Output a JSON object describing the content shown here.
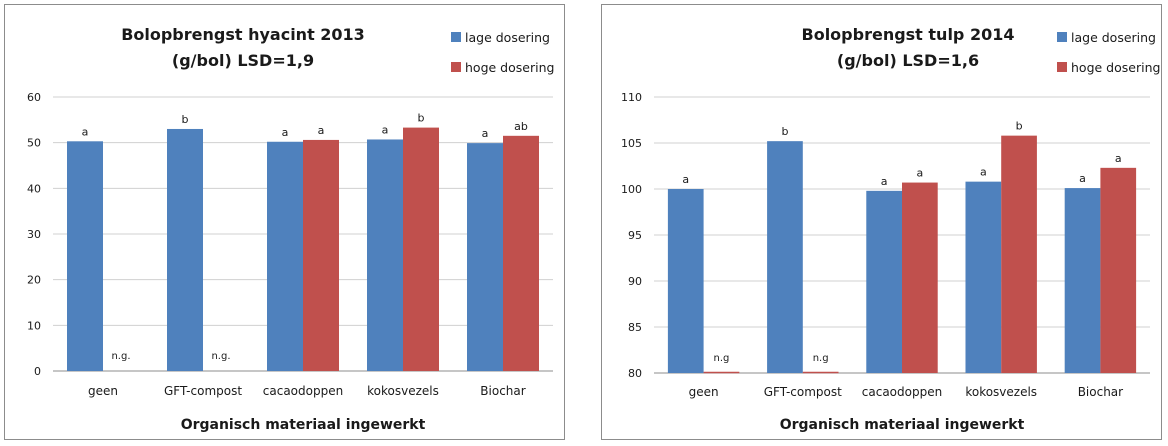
{
  "chart_data": [
    {
      "type": "bar",
      "title": [
        "Bolopbrengst hyacint 2013",
        "(g/bol) LSD=1,9"
      ],
      "xlabel": "Organisch materiaal ingewerkt",
      "ylabel": "",
      "ylim": [
        0,
        60
      ],
      "yticks": [
        0,
        10,
        20,
        30,
        40,
        50,
        60
      ],
      "grid": true,
      "legend_position": "top-right",
      "categories": [
        "geen",
        "GFT-compost",
        "cacaodoppen",
        "kokosvezels",
        "Biochar"
      ],
      "series": [
        {
          "name": "lage dosering",
          "color": "#4f81bd",
          "values": [
            50.3,
            53.0,
            50.2,
            50.7,
            49.9
          ],
          "labels": [
            "a",
            "b",
            "a",
            "a",
            "a"
          ]
        },
        {
          "name": "hoge dosering",
          "color": "#c0504d",
          "values": [
            null,
            null,
            50.6,
            53.3,
            51.5
          ],
          "labels": [
            "n.g.",
            "n.g.",
            "a",
            "b",
            "ab"
          ]
        }
      ]
    },
    {
      "type": "bar",
      "title": [
        "Bolopbrengst tulp 2014",
        "(g/bol) LSD=1,6"
      ],
      "xlabel": "Organisch materiaal ingewerkt",
      "ylabel": "",
      "ylim": [
        80,
        110
      ],
      "yticks": [
        80,
        85,
        90,
        95,
        100,
        105,
        110
      ],
      "grid": true,
      "legend_position": "top-right",
      "categories": [
        "geen",
        "GFT-compost",
        "cacaodoppen",
        "kokosvezels",
        "Biochar"
      ],
      "series": [
        {
          "name": "lage dosering",
          "color": "#4f81bd",
          "values": [
            100.0,
            105.2,
            99.8,
            100.8,
            100.1
          ],
          "labels": [
            "a",
            "b",
            "a",
            "a",
            "a"
          ]
        },
        {
          "name": "hoge dosering",
          "color": "#c0504d",
          "values": [
            null,
            null,
            100.7,
            105.8,
            102.3
          ],
          "labels": [
            "n.g",
            "n.g",
            "a",
            "b",
            "a"
          ]
        }
      ]
    }
  ]
}
